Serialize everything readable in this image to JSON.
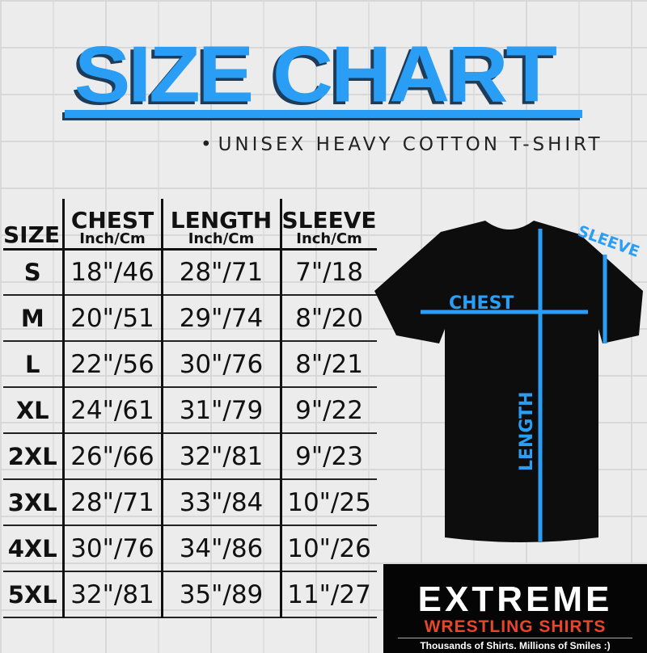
{
  "title": "SIZE CHART",
  "subtitle": "UNISEX HEAVY COTTON T-SHIRT",
  "table": {
    "size_header": "SIZE",
    "columns": [
      {
        "name": "CHEST",
        "unit": "Inch/Cm"
      },
      {
        "name": "LENGTH",
        "unit": "Inch/Cm"
      },
      {
        "name": "SLEEVE",
        "unit": "Inch/Cm"
      }
    ],
    "rows": [
      {
        "size": "S",
        "chest": "18\"/46",
        "length": "28\"/71",
        "sleeve": "7\"/18"
      },
      {
        "size": "M",
        "chest": "20\"/51",
        "length": "29\"/74",
        "sleeve": "8\"/20"
      },
      {
        "size": "L",
        "chest": "22\"/56",
        "length": "30\"/76",
        "sleeve": "8\"/21"
      },
      {
        "size": "XL",
        "chest": "24\"/61",
        "length": "31\"/79",
        "sleeve": "9\"/22"
      },
      {
        "size": "2XL",
        "chest": "26\"/66",
        "length": "32\"/81",
        "sleeve": "9\"/23"
      },
      {
        "size": "3XL",
        "chest": "28\"/71",
        "length": "33\"/84",
        "sleeve": "10\"/25"
      },
      {
        "size": "4XL",
        "chest": "30\"/76",
        "length": "34\"/86",
        "sleeve": "10\"/26"
      },
      {
        "size": "5XL",
        "chest": "32\"/81",
        "length": "35\"/89",
        "sleeve": "11\"/27"
      }
    ]
  },
  "diagram": {
    "chest_label": "CHEST",
    "length_label": "LENGTH",
    "sleeve_label": "SLEEVE",
    "line_color": "#2a9df4",
    "shirt_color": "#0d0d0d"
  },
  "logo": {
    "name": "EXTREME",
    "sub": "WRESTLING SHIRTS",
    "tagline": "Thousands of Shirts. Millions of Smiles :)",
    "accent": "#e8452a"
  }
}
